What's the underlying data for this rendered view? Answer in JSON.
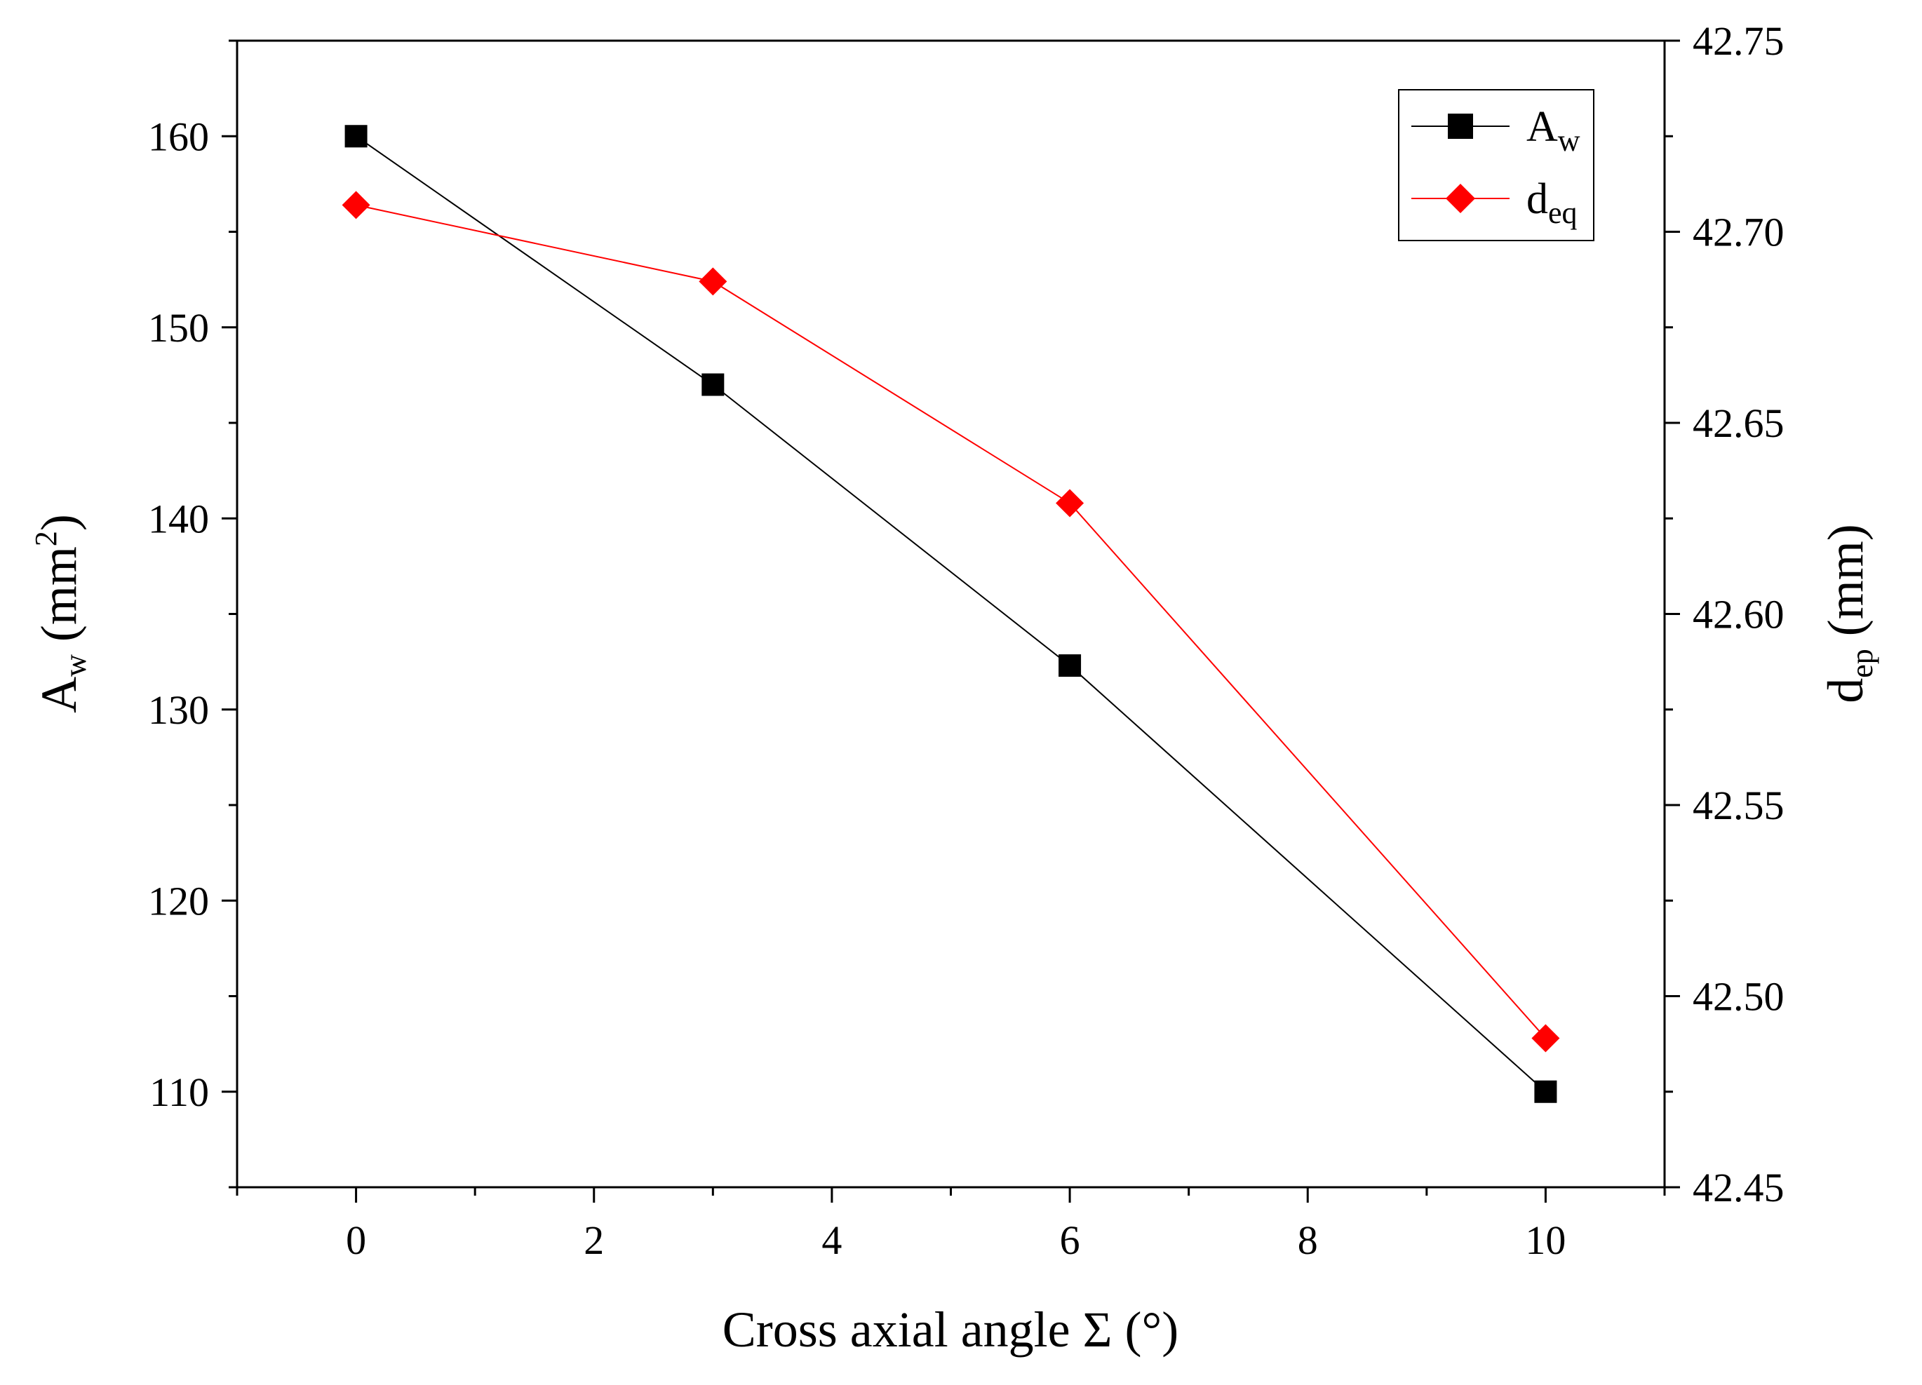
{
  "chart_data": {
    "type": "line",
    "title": "",
    "x": [
      0,
      3,
      6,
      10
    ],
    "xlabel": "Cross axial angle Σ (°)",
    "xlim": [
      -1,
      11
    ],
    "xticks": [
      0,
      2,
      4,
      6,
      8,
      10
    ],
    "xtick_labels": [
      "0",
      "2",
      "4",
      "6",
      "8",
      "10"
    ],
    "grid": false,
    "legend_position": "top-right",
    "left_axis": {
      "label_main": "A",
      "label_sub": "w",
      "label_unit_open": " (mm",
      "label_sup": "2",
      "label_unit_close": ")",
      "ylim": [
        105,
        165
      ],
      "ticks": [
        110,
        120,
        130,
        140,
        150,
        160
      ],
      "tick_labels": [
        "110",
        "120",
        "130",
        "140",
        "150",
        "160"
      ]
    },
    "right_axis": {
      "label_main": "d",
      "label_sub": "ep",
      "label_unit": " (mm)",
      "ylim": [
        42.45,
        42.75
      ],
      "ticks": [
        42.45,
        42.5,
        42.55,
        42.6,
        42.65,
        42.7,
        42.75
      ],
      "tick_labels": [
        "42.45",
        "42.50",
        "42.55",
        "42.60",
        "42.65",
        "42.70",
        "42.75"
      ]
    },
    "series": [
      {
        "name": "A",
        "name_sub": "w",
        "axis": "left",
        "values": [
          160.0,
          147.0,
          132.3,
          110.0
        ],
        "color": "#000000",
        "marker": "square"
      },
      {
        "name": "d",
        "name_sub": "eq",
        "axis": "right",
        "values": [
          42.707,
          42.687,
          42.629,
          42.489
        ],
        "color": "#ff0000",
        "marker": "diamond"
      }
    ]
  }
}
